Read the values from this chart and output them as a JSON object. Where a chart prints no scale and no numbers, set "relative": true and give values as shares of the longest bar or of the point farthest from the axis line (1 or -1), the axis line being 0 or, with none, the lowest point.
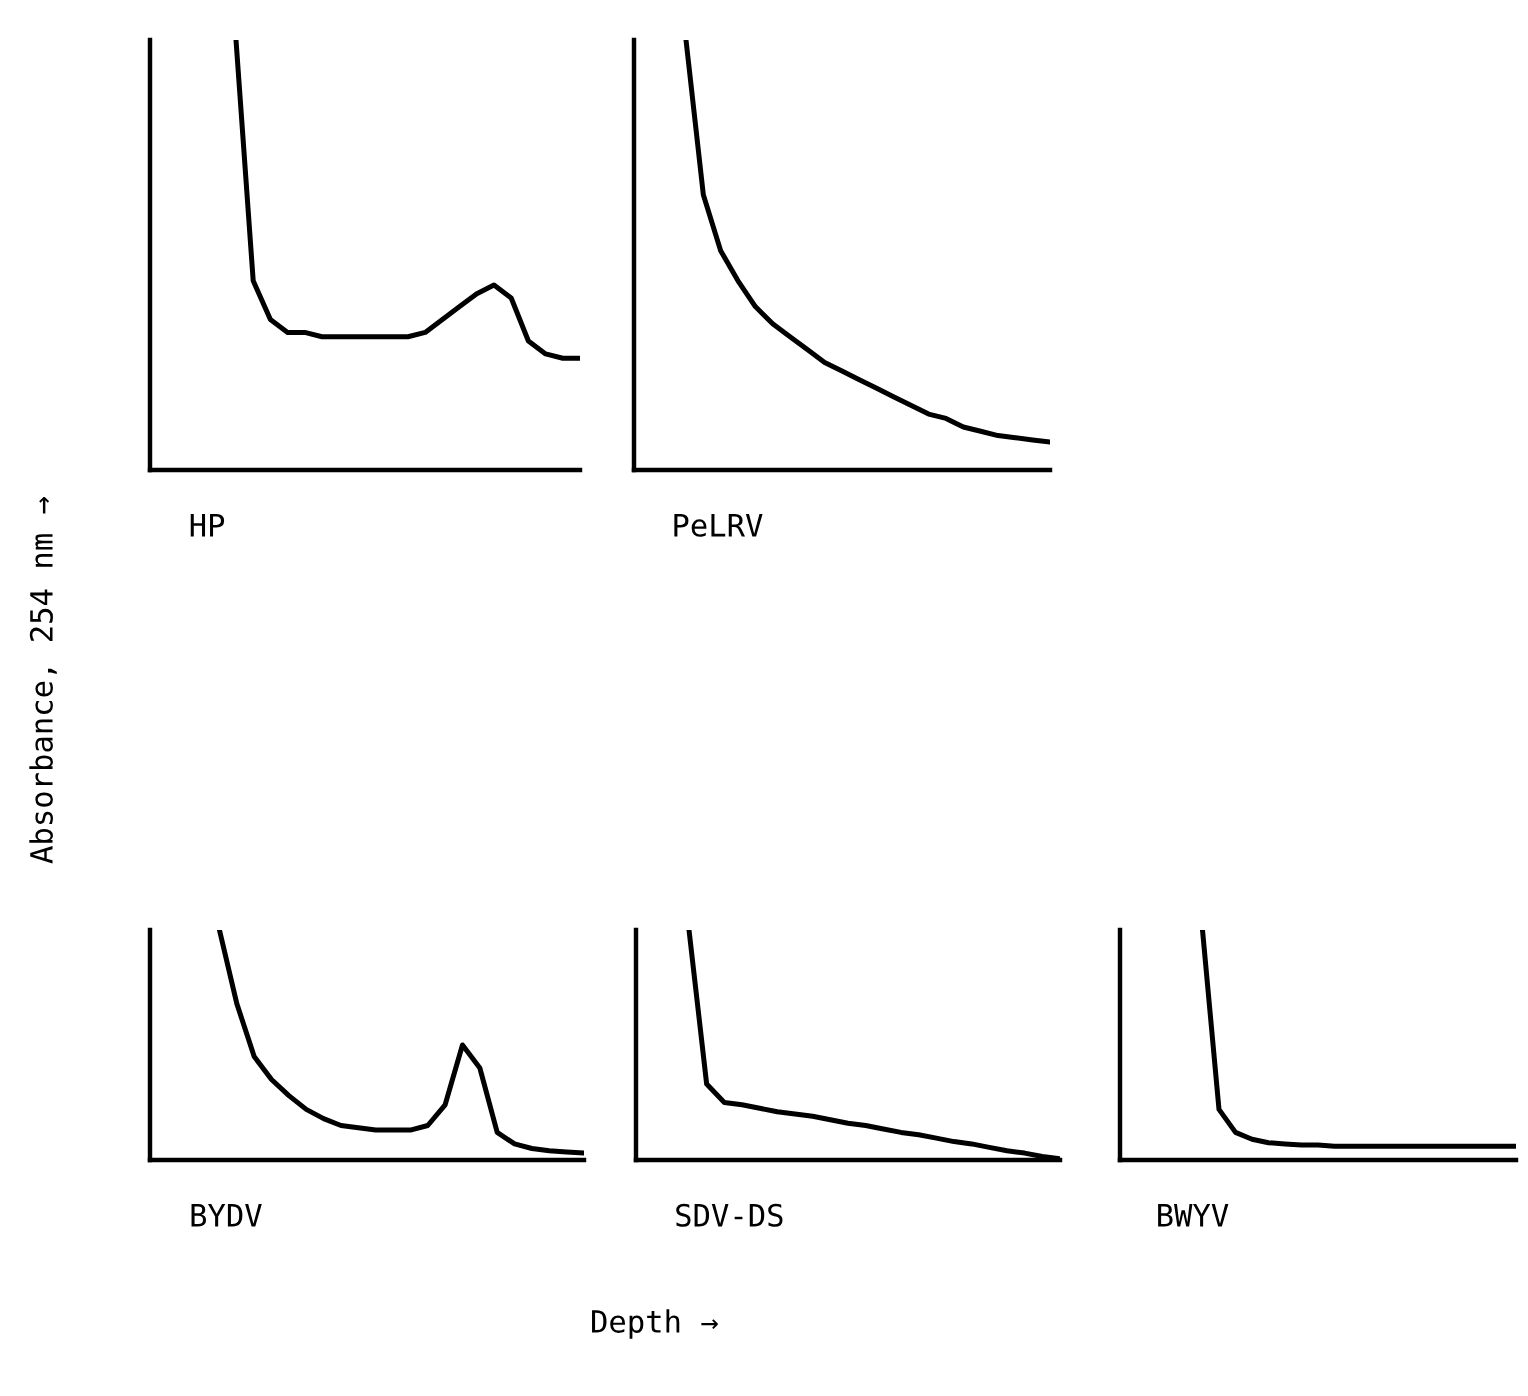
{
  "chart_data": [
    {
      "type": "line",
      "relative": true,
      "color": "#000000",
      "xlabel": "HP",
      "ylabel": "Absorbance, 254 nm →",
      "categories": [
        null,
        null,
        null,
        null,
        null,
        null,
        null,
        null,
        null,
        null,
        null,
        null,
        null,
        null,
        null,
        null,
        null,
        null,
        null,
        null,
        null,
        null,
        null,
        null,
        null,
        null
      ],
      "values": [
        null,
        null,
        null,
        null,
        null,
        1.0,
        0.44,
        0.35,
        0.32,
        0.32,
        0.31,
        0.31,
        0.31,
        0.31,
        0.31,
        0.31,
        0.32,
        0.35,
        0.38,
        0.41,
        0.43,
        0.4,
        0.3,
        0.27,
        0.26,
        0.26
      ]
    },
    {
      "type": "line",
      "relative": true,
      "color": "#000000",
      "xlabel": "PeLRV",
      "categories": [
        null,
        null,
        null,
        null,
        null,
        null,
        null,
        null,
        null,
        null,
        null,
        null,
        null,
        null,
        null,
        null,
        null,
        null,
        null,
        null,
        null,
        null,
        null,
        null,
        null
      ],
      "values": [
        null,
        null,
        null,
        1.0,
        0.64,
        0.51,
        0.44,
        0.38,
        0.34,
        0.31,
        0.28,
        0.25,
        0.23,
        0.21,
        0.19,
        0.17,
        0.15,
        0.13,
        0.12,
        0.1,
        0.09,
        0.08,
        0.075,
        0.07,
        0.065
      ]
    },
    {
      "type": "line",
      "relative": true,
      "color": "#000000",
      "xlabel": "BYDV",
      "categories": [
        null,
        null,
        null,
        null,
        null,
        null,
        null,
        null,
        null,
        null,
        null,
        null,
        null,
        null,
        null,
        null,
        null,
        null,
        null,
        null,
        null,
        null,
        null,
        null,
        null,
        null
      ],
      "values": [
        null,
        null,
        null,
        null,
        1.0,
        0.68,
        0.45,
        0.35,
        0.28,
        0.22,
        0.18,
        0.15,
        0.14,
        0.13,
        0.13,
        0.13,
        0.15,
        0.24,
        0.5,
        0.4,
        0.12,
        0.07,
        0.05,
        0.04,
        0.035,
        0.03
      ]
    },
    {
      "type": "line",
      "relative": true,
      "color": "#000000",
      "xlabel": "SDV-DS",
      "annotations": [
        "Depth →"
      ],
      "categories": [
        null,
        null,
        null,
        null,
        null,
        null,
        null,
        null,
        null,
        null,
        null,
        null,
        null,
        null,
        null,
        null,
        null,
        null,
        null,
        null,
        null,
        null,
        null,
        null,
        null
      ],
      "values": [
        null,
        null,
        null,
        1.0,
        0.33,
        0.25,
        0.24,
        0.225,
        0.21,
        0.2,
        0.19,
        0.175,
        0.16,
        0.15,
        0.135,
        0.12,
        0.11,
        0.095,
        0.08,
        0.07,
        0.055,
        0.04,
        0.03,
        0.015,
        0.005
      ]
    },
    {
      "type": "line",
      "relative": true,
      "color": "#000000",
      "xlabel": "BWYV",
      "categories": [
        null,
        null,
        null,
        null,
        null,
        null,
        null,
        null,
        null,
        null,
        null,
        null,
        null,
        null,
        null,
        null,
        null,
        null,
        null,
        null,
        null,
        null,
        null,
        null,
        null
      ],
      "values": [
        null,
        null,
        null,
        null,
        null,
        1.0,
        0.22,
        0.12,
        0.09,
        0.075,
        0.07,
        0.065,
        0.065,
        0.06,
        0.06,
        0.06,
        0.06,
        0.06,
        0.06,
        0.06,
        0.06,
        0.06,
        0.06,
        0.06,
        0.06
      ]
    }
  ]
}
